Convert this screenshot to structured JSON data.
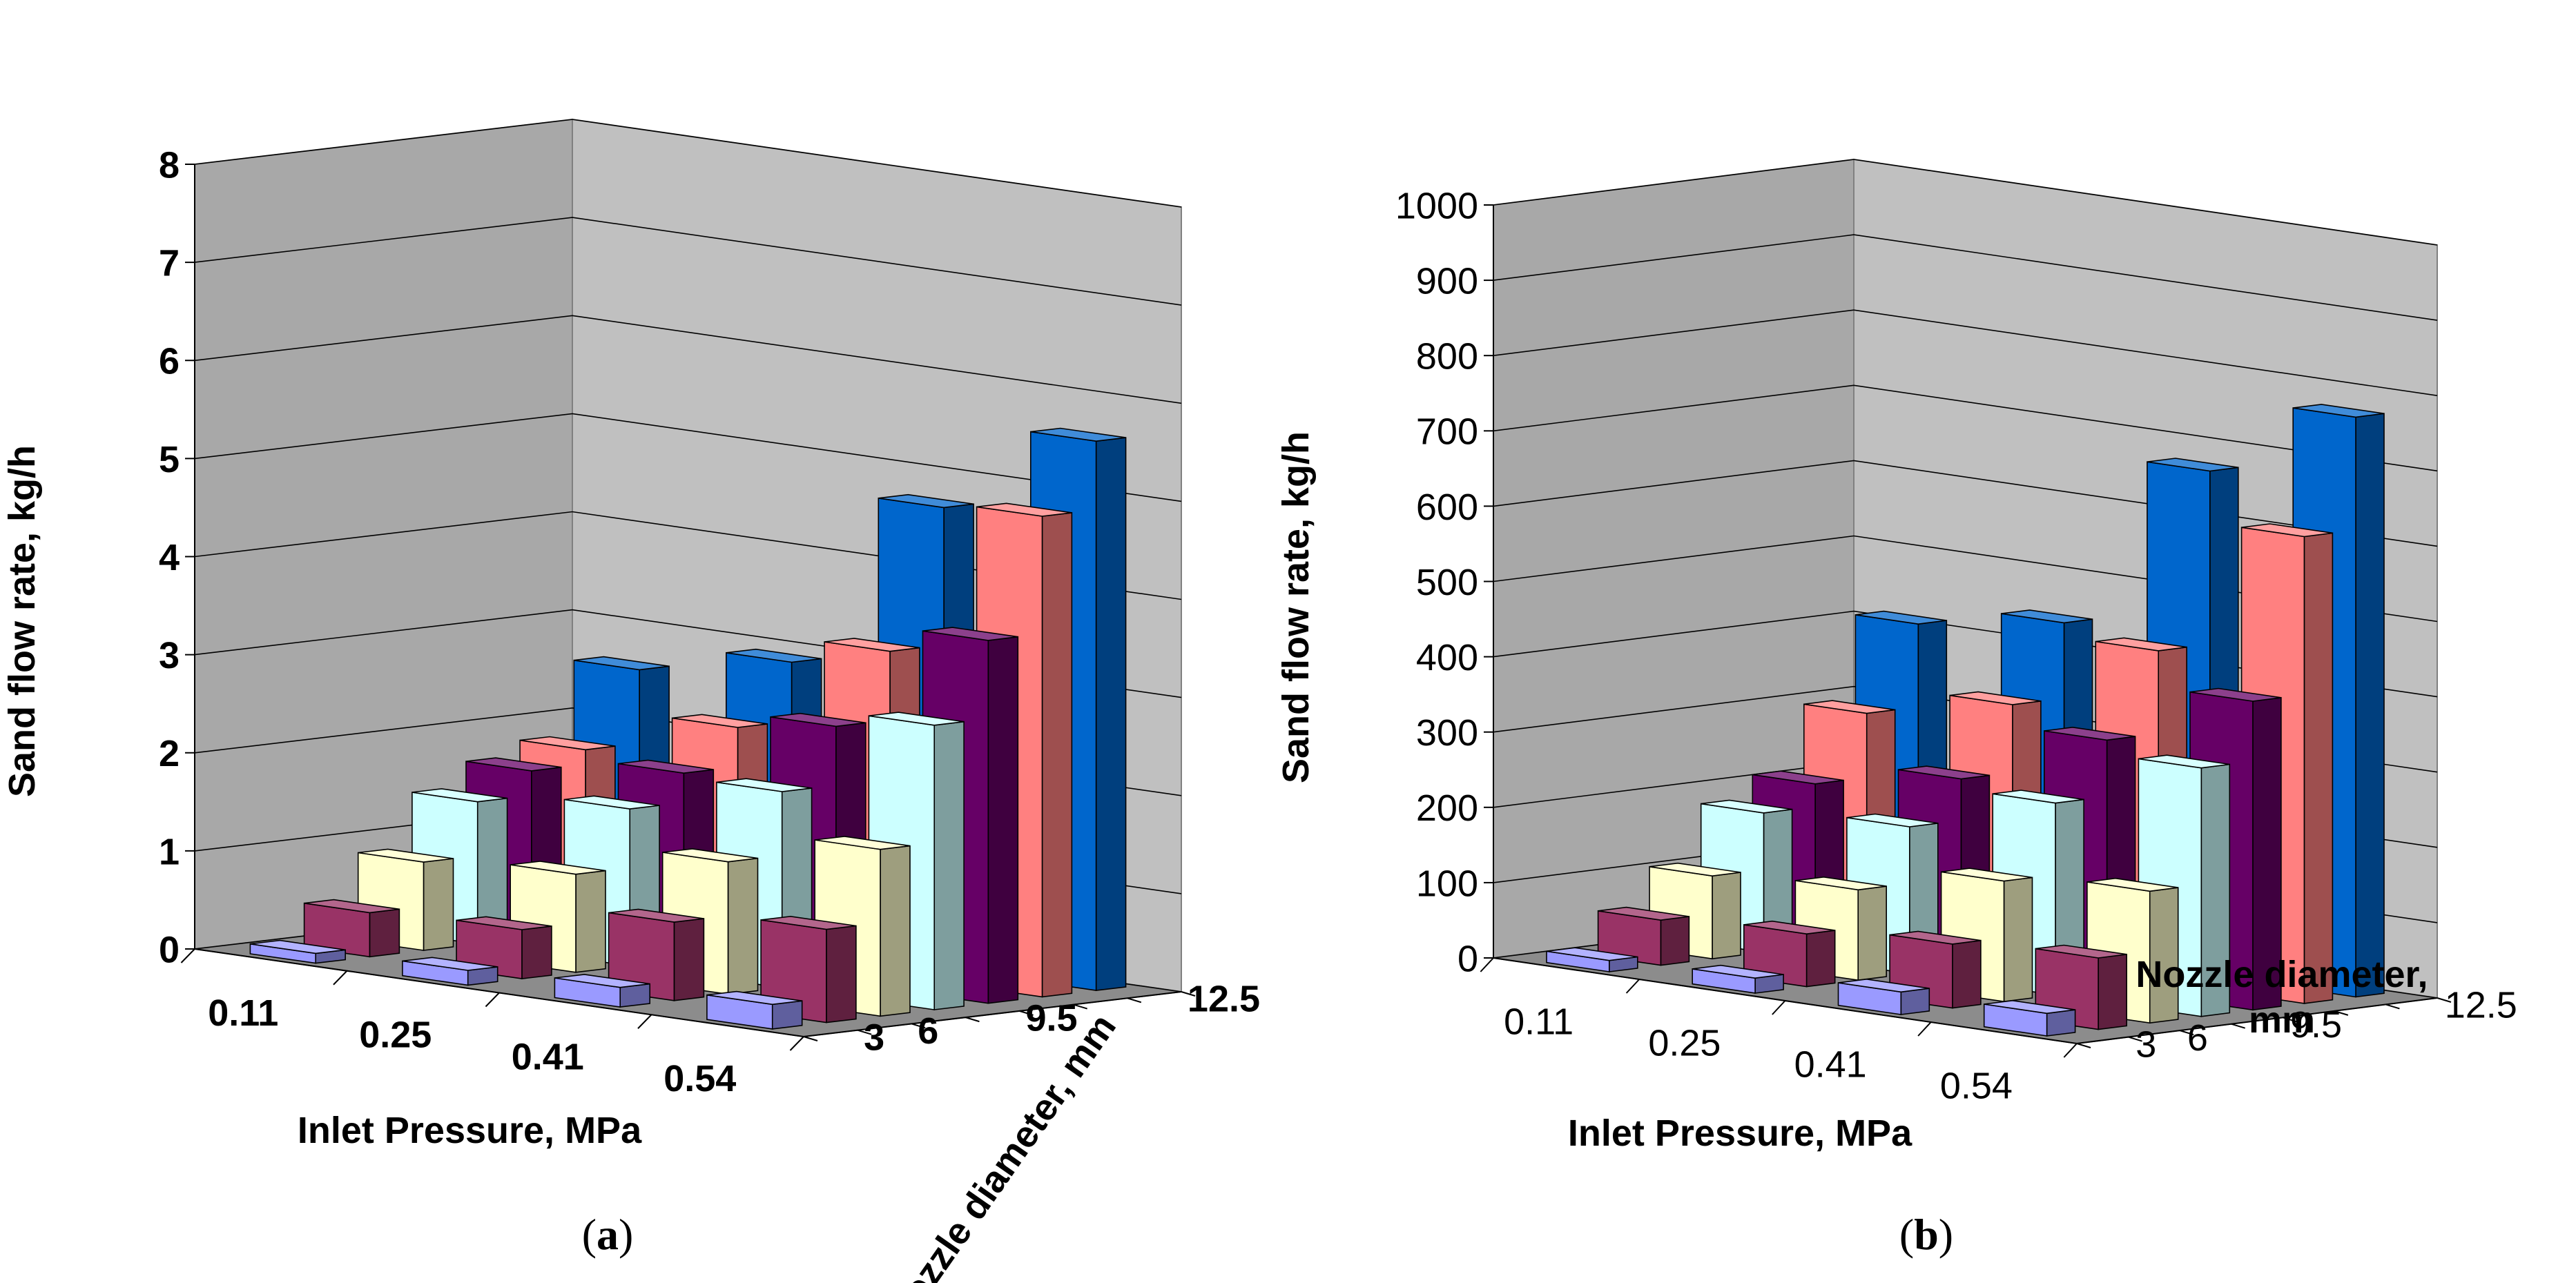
{
  "chart_data": [
    {
      "type": "bar3d",
      "panel": "a",
      "caption": {
        "open": "(",
        "letter": "a",
        "close": ")"
      },
      "ylabel": "Sand flow rate, kg/h",
      "xlabel": "Inlet Pressure, MPa",
      "zlabel": "Nozzle diameter, mm",
      "ylim": [
        0,
        8
      ],
      "yticks": [
        "0",
        "1",
        "2",
        "3",
        "4",
        "5",
        "6",
        "7",
        "8"
      ],
      "categories": [
        "0.11",
        "0.25",
        "0.41",
        "0.54"
      ],
      "series": [
        {
          "name": "3",
          "color": "#9a9aff",
          "values": [
            0.1,
            0.15,
            0.2,
            0.25
          ]
        },
        {
          "name": "6",
          "color": "#993366",
          "values": [
            0.45,
            0.5,
            0.8,
            0.95
          ]
        },
        {
          "name": "",
          "color": "#ffffcc",
          "values": [
            0.9,
            1.0,
            1.35,
            1.7
          ]
        },
        {
          "name": "9.5",
          "color": "#ccffff",
          "values": [
            1.45,
            1.6,
            2.0,
            2.9
          ]
        },
        {
          "name": "",
          "color": "#660066",
          "values": [
            1.7,
            1.9,
            2.6,
            3.7
          ]
        },
        {
          "name": "",
          "color": "#ff8080",
          "values": [
            1.85,
            2.3,
            3.3,
            4.9
          ]
        },
        {
          "name": "12.5",
          "color": "#0066cc",
          "values": [
            2.6,
            2.9,
            4.7,
            5.6
          ]
        }
      ]
    },
    {
      "type": "bar3d",
      "panel": "b",
      "caption": {
        "open": "(",
        "letter": "b",
        "close": ")"
      },
      "ylabel": "Sand flow rate, kg/h",
      "xlabel": "Inlet Pressure, MPa",
      "zlabel": "Nozzle diameter,",
      "zlabel2": "mm",
      "ylim": [
        0,
        1000
      ],
      "yticks": [
        "0",
        "100",
        "200",
        "300",
        "400",
        "500",
        "600",
        "700",
        "800",
        "900",
        "1000"
      ],
      "categories": [
        "0.11",
        "0.25",
        "0.41",
        "0.54"
      ],
      "series": [
        {
          "name": "3",
          "color": "#9a9aff",
          "values": [
            15,
            20,
            30,
            30
          ]
        },
        {
          "name": "6",
          "color": "#993366",
          "values": [
            60,
            70,
            85,
            95
          ]
        },
        {
          "name": "",
          "color": "#ffffcc",
          "values": [
            110,
            120,
            160,
            175
          ]
        },
        {
          "name": "9.5",
          "color": "#ccffff",
          "values": [
            185,
            195,
            255,
            330
          ]
        },
        {
          "name": "",
          "color": "#660066",
          "values": [
            215,
            250,
            330,
            410
          ]
        },
        {
          "name": "",
          "color": "#ff8080",
          "values": [
            300,
            340,
            440,
            620
          ]
        },
        {
          "name": "12.5",
          "color": "#0066cc",
          "values": [
            410,
            440,
            670,
            770
          ]
        }
      ]
    }
  ]
}
